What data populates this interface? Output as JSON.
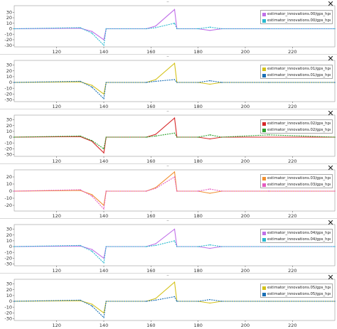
{
  "window": {
    "close_glyph": "✕",
    "handle_glyph": "–"
  },
  "panels": [
    {
      "legend": [
        "estimator_innovations.00/gps_hpos.00",
        "estimator_innovations.00/gps_hpos.01"
      ],
      "colors": [
        "#c070e8",
        "#29b9cf"
      ],
      "yticks": [
        -30,
        -20,
        -10,
        0,
        10,
        20,
        30
      ],
      "ylim": [
        -33,
        42
      ],
      "peak_a": 35,
      "peak_b": 10,
      "trough_a": -20,
      "trough_b": -30
    },
    {
      "legend": [
        "estimator_innovations.01/gps_hpos.00",
        "estimator_innovations.01/gps_hpos.01"
      ],
      "colors": [
        "#d4c21a",
        "#1a6fb5"
      ],
      "yticks": [
        -30,
        -20,
        -10,
        0,
        10,
        20,
        30
      ],
      "ylim": [
        -33,
        38
      ],
      "peak_a": 33,
      "peak_b": 5,
      "trough_a": -20,
      "trough_b": -28
    },
    {
      "legend": [
        "estimator_innovations.02/gps_hpos.00",
        "estimator_innovations.02/gps_hpos.01"
      ],
      "colors": [
        "#d62728",
        "#2ca02c"
      ],
      "yticks": [
        -30,
        -20,
        -10,
        0,
        10,
        20,
        30
      ],
      "ylim": [
        -33,
        38
      ],
      "peak_a": 33,
      "peak_b": 7,
      "trough_a": -27,
      "trough_b": -20
    },
    {
      "legend": [
        "estimator_innovations.03/gps_hpos.00",
        "estimator_innovations.03/gps_hpos.01"
      ],
      "colors": [
        "#f09030",
        "#e55bbf"
      ],
      "yticks": [
        -20,
        -10,
        0,
        10,
        20
      ],
      "ylim": [
        -28,
        30
      ],
      "peak_a": 27,
      "peak_b": 20,
      "trough_a": -20,
      "trough_b": -25
    },
    {
      "legend": [
        "estimator_innovations.04/gps_hpos.00",
        "estimator_innovations.04/gps_hpos.01"
      ],
      "colors": [
        "#c070e8",
        "#29b9cf"
      ],
      "yticks": [
        -30,
        -20,
        -10,
        0,
        10,
        20,
        30
      ],
      "ylim": [
        -33,
        38
      ],
      "peak_a": 30,
      "peak_b": 10,
      "trough_a": -20,
      "trough_b": -28
    },
    {
      "legend": [
        "estimator_innovations.05/gps_hpos.00",
        "estimator_innovations.05/gps_hpos.01"
      ],
      "colors": [
        "#d4c21a",
        "#1a6fb5"
      ],
      "yticks": [
        -30,
        -20,
        -10,
        0,
        10,
        20,
        30
      ],
      "ylim": [
        -33,
        38
      ],
      "peak_a": 33,
      "peak_b": 8,
      "trough_a": -20,
      "trough_b": -28
    }
  ],
  "xticks": [
    120,
    140,
    160,
    180,
    200,
    220
  ],
  "xlim": [
    102,
    238
  ],
  "chart_data": [
    {
      "type": "line",
      "series": [
        {
          "name": "estimator_innovations.00/gps_hpos.00",
          "x": [
            102,
            130,
            135,
            140,
            141,
            158,
            162,
            170,
            171,
            180,
            185,
            190,
            210,
            238
          ],
          "values": [
            0,
            1,
            -5,
            -20,
            0,
            0,
            5,
            35,
            0,
            0,
            -3,
            0,
            0,
            0
          ]
        },
        {
          "name": "estimator_innovations.00/gps_hpos.01",
          "x": [
            102,
            130,
            135,
            140,
            141,
            158,
            162,
            170,
            171,
            180,
            185,
            190,
            210,
            238
          ],
          "values": [
            0,
            2,
            -8,
            -30,
            0,
            0,
            2,
            10,
            0,
            0,
            3,
            0,
            0,
            0
          ]
        }
      ]
    },
    {
      "type": "line",
      "series": [
        {
          "name": "estimator_innovations.01/gps_hpos.00",
          "x": [
            102,
            130,
            135,
            140,
            141,
            158,
            162,
            170,
            171,
            180,
            185,
            190,
            210,
            238
          ],
          "values": [
            0,
            1,
            -5,
            -20,
            0,
            0,
            5,
            33,
            0,
            0,
            -3,
            0,
            0,
            0
          ]
        },
        {
          "name": "estimator_innovations.01/gps_hpos.01",
          "x": [
            102,
            130,
            135,
            140,
            141,
            158,
            162,
            170,
            171,
            180,
            185,
            190,
            210,
            238
          ],
          "values": [
            0,
            2,
            -8,
            -28,
            0,
            0,
            2,
            5,
            0,
            0,
            3,
            0,
            0,
            0
          ]
        }
      ]
    },
    {
      "type": "line",
      "series": [
        {
          "name": "estimator_innovations.02/gps_hpos.00",
          "x": [
            102,
            130,
            135,
            140,
            141,
            158,
            162,
            170,
            171,
            180,
            185,
            190,
            210,
            238
          ],
          "values": [
            0,
            1,
            -7,
            -27,
            0,
            0,
            5,
            33,
            0,
            0,
            -3,
            0,
            0,
            0
          ]
        },
        {
          "name": "estimator_innovations.02/gps_hpos.01",
          "x": [
            102,
            130,
            135,
            140,
            141,
            158,
            162,
            170,
            171,
            180,
            185,
            190,
            210,
            238
          ],
          "values": [
            0,
            2,
            -6,
            -20,
            0,
            0,
            2,
            7,
            0,
            0,
            4,
            0,
            4,
            0
          ]
        }
      ]
    },
    {
      "type": "line",
      "series": [
        {
          "name": "estimator_innovations.03/gps_hpos.00",
          "x": [
            102,
            130,
            135,
            140,
            141,
            158,
            162,
            170,
            171,
            180,
            185,
            190,
            210,
            238
          ],
          "values": [
            0,
            1,
            -5,
            -20,
            0,
            0,
            5,
            27,
            0,
            0,
            -3,
            0,
            0,
            0
          ]
        },
        {
          "name": "estimator_innovations.03/gps_hpos.01",
          "x": [
            102,
            130,
            135,
            140,
            141,
            158,
            162,
            170,
            171,
            180,
            185,
            190,
            210,
            238
          ],
          "values": [
            0,
            2,
            -7,
            -25,
            0,
            0,
            4,
            20,
            0,
            0,
            3,
            0,
            0,
            0
          ]
        }
      ]
    },
    {
      "type": "line",
      "series": [
        {
          "name": "estimator_innovations.04/gps_hpos.00",
          "x": [
            102,
            130,
            135,
            140,
            141,
            158,
            162,
            170,
            171,
            180,
            185,
            190,
            210,
            238
          ],
          "values": [
            0,
            1,
            -5,
            -20,
            0,
            0,
            5,
            30,
            0,
            0,
            -3,
            0,
            0,
            0
          ]
        },
        {
          "name": "estimator_innovations.04/gps_hpos.01",
          "x": [
            102,
            130,
            135,
            140,
            141,
            158,
            162,
            170,
            171,
            180,
            185,
            190,
            210,
            238
          ],
          "values": [
            0,
            2,
            -8,
            -28,
            0,
            0,
            2,
            10,
            0,
            0,
            3,
            0,
            0,
            0
          ]
        }
      ]
    },
    {
      "type": "line",
      "series": [
        {
          "name": "estimator_innovations.05/gps_hpos.00",
          "x": [
            102,
            130,
            135,
            140,
            141,
            158,
            162,
            170,
            171,
            180,
            185,
            190,
            210,
            238
          ],
          "values": [
            0,
            1,
            -5,
            -20,
            0,
            0,
            5,
            33,
            0,
            0,
            -3,
            0,
            0,
            0
          ]
        },
        {
          "name": "estimator_innovations.05/gps_hpos.01",
          "x": [
            102,
            130,
            135,
            140,
            141,
            158,
            162,
            170,
            171,
            180,
            185,
            190,
            210,
            238
          ],
          "values": [
            0,
            2,
            -8,
            -28,
            0,
            0,
            2,
            8,
            0,
            0,
            3,
            0,
            0,
            0
          ]
        }
      ]
    }
  ]
}
